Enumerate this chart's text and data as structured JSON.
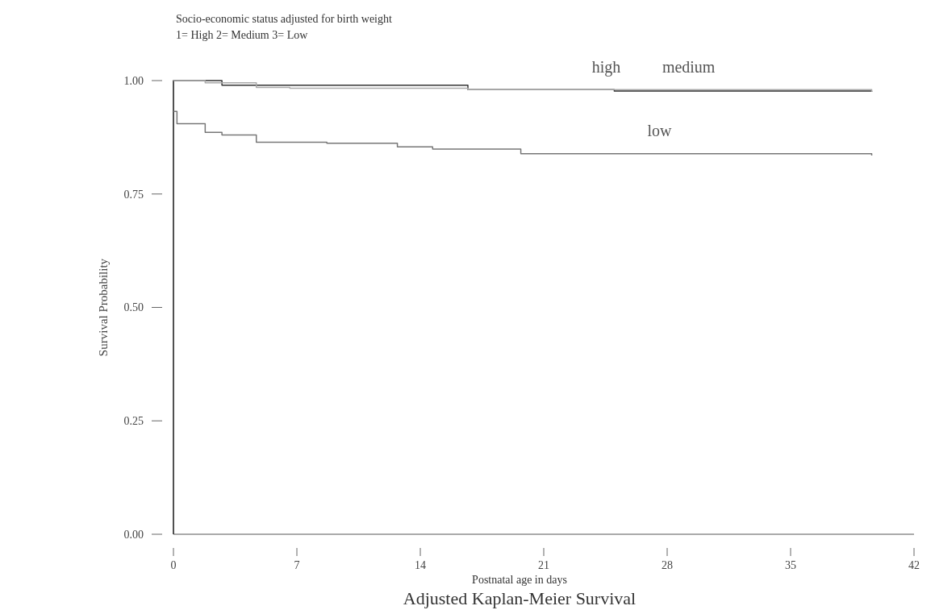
{
  "chart_data": {
    "type": "step",
    "title": "Adjusted Kaplan-Meier Survival",
    "subtitle": "Socio-economic status adjusted for birth weight",
    "annotations": [
      "1= High 2= Medium 3= Low"
    ],
    "xlabel": "Postnatal age in days",
    "ylabel": "Survival Probability",
    "xlim": [
      0,
      42
    ],
    "ylim": [
      0,
      1
    ],
    "xticks": [
      0,
      7,
      14,
      21,
      28,
      35,
      42
    ],
    "yticks": [
      {
        "value": 0,
        "label": "0.00"
      },
      {
        "value": 0.25,
        "label": "0.25"
      },
      {
        "value": 0.5,
        "label": "0.50"
      },
      {
        "value": 0.75,
        "label": "0.75"
      },
      {
        "value": 1,
        "label": "1.00"
      }
    ],
    "grid": false,
    "series": [
      {
        "name": "high",
        "color": "#333333",
        "x": [
          0,
          0,
          2.75,
          16.7,
          25,
          39.6
        ],
        "values": [
          0,
          1,
          0.99,
          0.98,
          0.977,
          0.975
        ]
      },
      {
        "name": "medium",
        "color": "#aaaaaa",
        "x": [
          0,
          1.8,
          4.7,
          6.6,
          16.7,
          39.6
        ],
        "values": [
          1,
          0.995,
          0.985,
          0.983,
          0.98,
          0.975
        ]
      },
      {
        "name": "low",
        "color": "#777777",
        "x": [
          0,
          0.2,
          1.8,
          2.75,
          4.7,
          8.7,
          12.7,
          14.7,
          19.7,
          39.6
        ],
        "values": [
          0.932,
          0.905,
          0.886,
          0.88,
          0.864,
          0.862,
          0.854,
          0.849,
          0.839,
          0.835
        ]
      }
    ]
  }
}
